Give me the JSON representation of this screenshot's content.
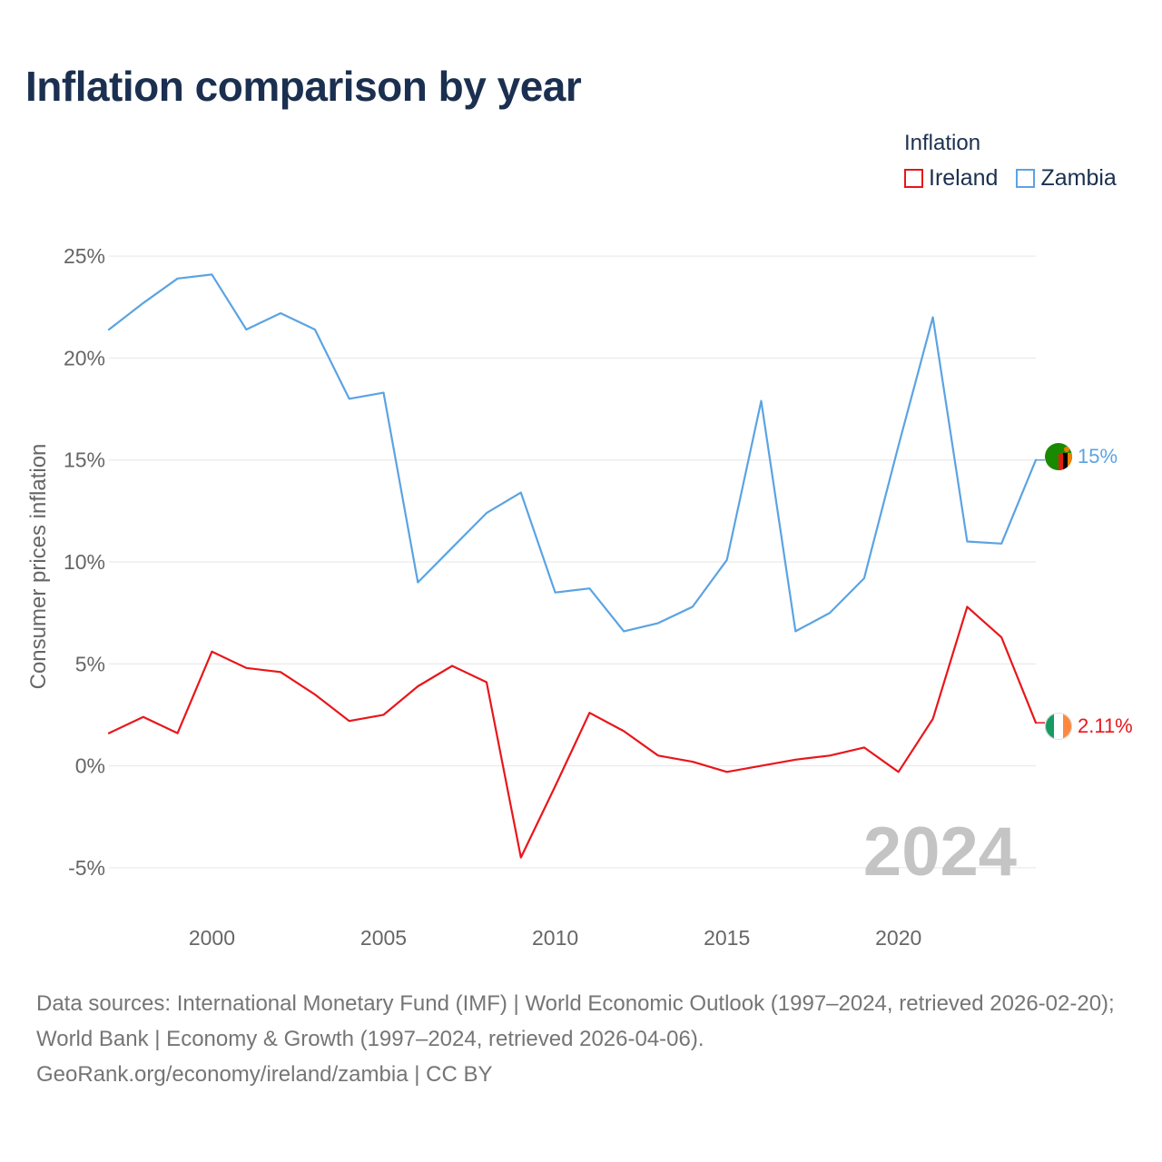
{
  "title": "Inflation comparison by year",
  "legend": {
    "title": "Inflation",
    "items": [
      {
        "label": "Ireland",
        "color": "#e8161b"
      },
      {
        "label": "Zambia",
        "color": "#5ba3e3"
      }
    ]
  },
  "watermark_year": "2024",
  "chart_data": {
    "type": "line",
    "ylabel": "Consumer prices inflation",
    "xlabel": "",
    "xlim": [
      1997,
      2024
    ],
    "ylim": [
      -7.5,
      27.5
    ],
    "x_ticks": [
      2000,
      2005,
      2010,
      2015,
      2020
    ],
    "y_ticks": [
      -5,
      0,
      5,
      10,
      15,
      20,
      25
    ],
    "y_tick_labels": [
      "-5%",
      "0%",
      "5%",
      "10%",
      "15%",
      "20%",
      "25%"
    ],
    "x": [
      1997,
      1998,
      1999,
      2000,
      2001,
      2002,
      2003,
      2004,
      2005,
      2006,
      2007,
      2008,
      2009,
      2010,
      2011,
      2012,
      2013,
      2014,
      2015,
      2016,
      2017,
      2018,
      2019,
      2020,
      2021,
      2022,
      2023,
      2024
    ],
    "series": [
      {
        "name": "Zambia",
        "color": "#5ba3e3",
        "values": [
          21.4,
          22.7,
          23.9,
          24.1,
          21.4,
          22.2,
          21.4,
          18.0,
          18.3,
          9.0,
          10.7,
          12.4,
          13.4,
          8.5,
          8.7,
          6.6,
          7.0,
          7.8,
          10.1,
          17.9,
          6.6,
          7.5,
          9.2,
          15.7,
          22.0,
          11.0,
          10.9,
          15.0
        ],
        "end_label": "15%"
      },
      {
        "name": "Ireland",
        "color": "#e8161b",
        "values": [
          1.6,
          2.4,
          1.6,
          5.6,
          4.8,
          4.6,
          3.5,
          2.2,
          2.5,
          3.9,
          4.9,
          4.1,
          -4.5,
          -1.0,
          2.6,
          1.7,
          0.5,
          0.2,
          -0.3,
          0.0,
          0.3,
          0.5,
          0.9,
          -0.3,
          2.3,
          7.8,
          6.3,
          2.11
        ],
        "end_label": "2.11%"
      }
    ]
  },
  "footer": {
    "line1": "Data sources: International Monetary Fund (IMF) | World Economic Outlook (1997–2024, retrieved 2026-02-20); World Bank | Economy & Growth (1997–2024, retrieved 2026-04-06).",
    "line2": "GeoRank.org/economy/ireland/zambia | CC BY"
  }
}
